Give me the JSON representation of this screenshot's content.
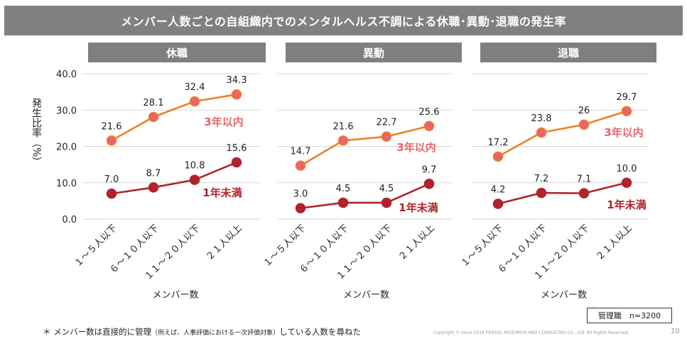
{
  "title": "メンバー人数ごとの自組織内でのメンタルヘルス不調による休職･異動･退職の発生率",
  "ylabel": "発生比率（%）",
  "xlabel": "メンバー数",
  "sample": "管理職　n=3200",
  "footnote": {
    "main": "＊ メンバー数は直接的に管理",
    "paren": "（例えば、人事評価における一次評価対象）",
    "tail": "している人数を尋ねた"
  },
  "copyright": "Copyright © since 2016  PERSOL  RESEARCH AND CONSULTING Co., Ltd. All Rights Reserved.",
  "page_number": "10",
  "colors": {
    "within3years": "#f07f23",
    "under1year": "#b0232b",
    "within3years_label": "#e8656b",
    "header_bg": "#7f7f7f",
    "title_bg": "#808080",
    "marker_fill": "#e8656b"
  },
  "chart_data": [
    {
      "type": "line",
      "title": "休職",
      "categories": [
        "１～５人以下",
        "６～１０人以下",
        "１１～２０人以下",
        "２１人以上"
      ],
      "ylim": [
        0,
        40
      ],
      "yticks": [
        "0.0",
        "10.0",
        "20.0",
        "30.0",
        "40.0"
      ],
      "grid": true,
      "series": [
        {
          "name": "3年以内",
          "values": [
            21.6,
            28.1,
            32.4,
            34.3
          ],
          "labels": [
            "21.6",
            "28.1",
            "32.4",
            "34.3"
          ]
        },
        {
          "name": "1年未満",
          "values": [
            7.0,
            8.7,
            10.8,
            15.6
          ],
          "labels": [
            "7.0",
            "8.7",
            "10.8",
            "15.6"
          ]
        }
      ]
    },
    {
      "type": "line",
      "title": "異動",
      "categories": [
        "１～５人以下",
        "６～１０人以下",
        "１１～２０人以下",
        "２１人以上"
      ],
      "ylim": [
        0,
        40
      ],
      "grid": true,
      "series": [
        {
          "name": "3年以内",
          "values": [
            14.7,
            21.6,
            22.7,
            25.6
          ],
          "labels": [
            "14.7",
            "21.6",
            "22.7",
            "25.6"
          ]
        },
        {
          "name": "1年未満",
          "values": [
            3.0,
            4.5,
            4.5,
            9.7
          ],
          "labels": [
            "3.0",
            "4.5",
            "4.5",
            "9.7"
          ]
        }
      ]
    },
    {
      "type": "line",
      "title": "退職",
      "categories": [
        "１～５人以下",
        "６～１０人以下",
        "１１～２０人以下",
        "２１人以上"
      ],
      "ylim": [
        0,
        40
      ],
      "grid": true,
      "series": [
        {
          "name": "3年以内",
          "values": [
            17.2,
            23.8,
            26,
            29.7
          ],
          "labels": [
            "17.2",
            "23.8",
            "26",
            "29.7"
          ]
        },
        {
          "name": "1年未満",
          "values": [
            4.2,
            7.2,
            7.1,
            10.0
          ],
          "labels": [
            "4.2",
            "7.2",
            "7.1",
            "10.0"
          ]
        }
      ]
    }
  ]
}
